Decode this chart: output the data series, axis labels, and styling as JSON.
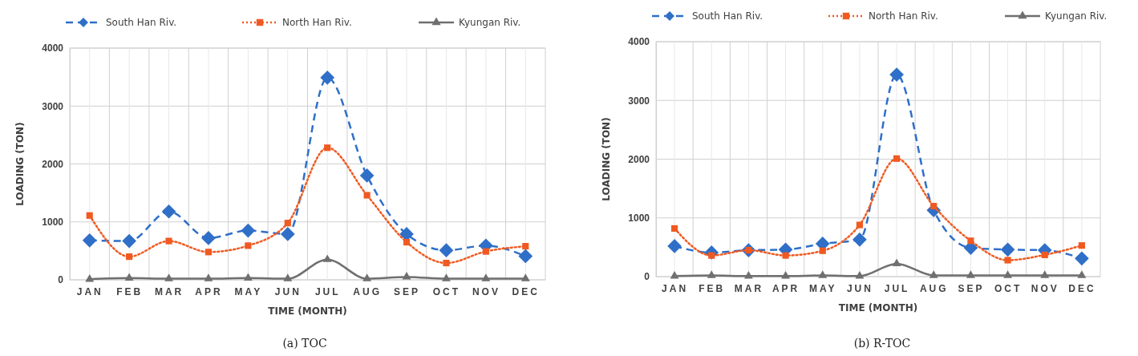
{
  "chart_data": [
    {
      "type": "line",
      "xlabel": "TIME (MONTH)",
      "ylabel": "LOADING (TON)",
      "annotations": [
        "(a)  TOC"
      ],
      "categories": [
        "JAN",
        "FEB",
        "MAR",
        "APR",
        "MAY",
        "JUN",
        "JUL",
        "AUG",
        "SEP",
        "OCT",
        "NOV",
        "DEC"
      ],
      "ylim": [
        0,
        4000
      ],
      "yticks": [
        0,
        1000,
        2000,
        3000,
        4000
      ],
      "grid": true,
      "legend": "top",
      "series": [
        {
          "name": "South Han Riv.",
          "color": "#2f6fc8",
          "marker": "diamond",
          "line_style": "dashed",
          "values": [
            680,
            670,
            1180,
            720,
            850,
            790,
            3490,
            1800,
            790,
            510,
            590,
            410
          ]
        },
        {
          "name": "North Han Riv.",
          "color": "#f05a22",
          "marker": "square",
          "line_style": "dotted",
          "values": [
            1110,
            400,
            670,
            480,
            590,
            980,
            2280,
            1460,
            650,
            290,
            490,
            580
          ]
        },
        {
          "name": "Kyungan Riv.",
          "color": "#6f6f6f",
          "marker": "triangle",
          "line_style": "solid",
          "values": [
            10,
            30,
            20,
            20,
            30,
            20,
            350,
            20,
            50,
            20,
            20,
            20
          ]
        }
      ]
    },
    {
      "type": "line",
      "xlabel": "TIME (MONTH)",
      "ylabel": "LOADING (TON)",
      "annotations": [
        "(b)  R-TOC"
      ],
      "categories": [
        "JAN",
        "FEB",
        "MAR",
        "APR",
        "MAY",
        "JUN",
        "JUL",
        "AUG",
        "SEP",
        "OCT",
        "NOV",
        "DEC"
      ],
      "ylim": [
        0,
        4000
      ],
      "yticks": [
        0,
        1000,
        2000,
        3000,
        4000
      ],
      "grid": true,
      "legend": "top",
      "series": [
        {
          "name": "South Han Riv.",
          "color": "#2f6fc8",
          "marker": "diamond",
          "line_style": "dashed",
          "values": [
            520,
            410,
            450,
            460,
            560,
            630,
            3440,
            1130,
            490,
            460,
            450,
            310
          ]
        },
        {
          "name": "North Han Riv.",
          "color": "#f05a22",
          "marker": "square",
          "line_style": "dotted",
          "values": [
            820,
            360,
            450,
            360,
            440,
            880,
            2010,
            1200,
            610,
            280,
            370,
            530
          ]
        },
        {
          "name": "Kyungan Riv.",
          "color": "#6f6f6f",
          "marker": "triangle",
          "line_style": "solid",
          "values": [
            10,
            20,
            10,
            10,
            20,
            10,
            220,
            20,
            20,
            20,
            20,
            20
          ]
        }
      ]
    }
  ]
}
